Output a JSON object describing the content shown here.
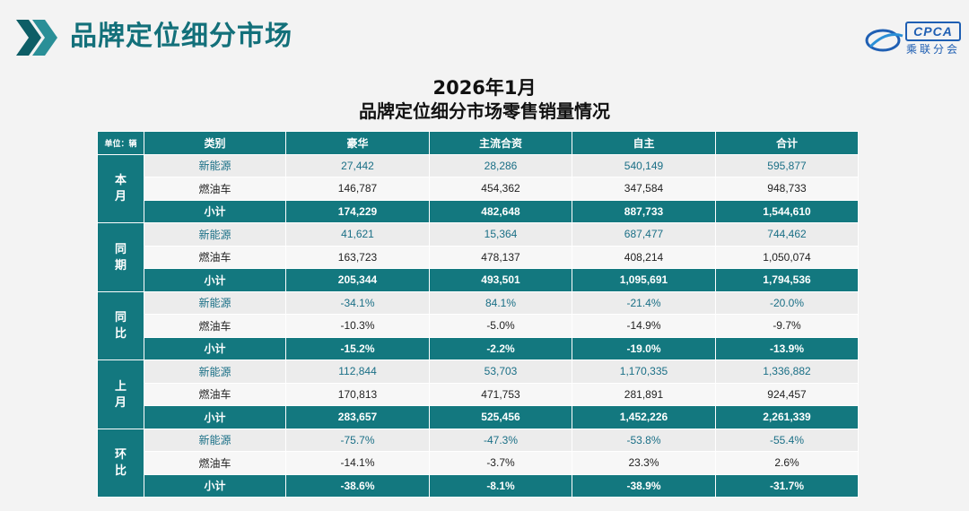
{
  "page_title": "品牌定位细分市场",
  "logo": {
    "text": "CPCA",
    "subtext": "乘联分会"
  },
  "heading": {
    "period": "2026年1月",
    "title": "品牌定位细分市场零售销量情况"
  },
  "table": {
    "unit_label": "单位：辆",
    "columns": [
      "类别",
      "豪华",
      "主流合资",
      "自主",
      "合计"
    ],
    "groups": [
      {
        "name": "本月",
        "rows": [
          {
            "category": "新能源",
            "values": [
              "27,442",
              "28,286",
              "540,149",
              "595,877"
            ]
          },
          {
            "category": "燃油车",
            "values": [
              "146,787",
              "454,362",
              "347,584",
              "948,733"
            ]
          },
          {
            "category": "小计",
            "values": [
              "174,229",
              "482,648",
              "887,733",
              "1,544,610"
            ]
          }
        ]
      },
      {
        "name": "同期",
        "rows": [
          {
            "category": "新能源",
            "values": [
              "41,621",
              "15,364",
              "687,477",
              "744,462"
            ]
          },
          {
            "category": "燃油车",
            "values": [
              "163,723",
              "478,137",
              "408,214",
              "1,050,074"
            ]
          },
          {
            "category": "小计",
            "values": [
              "205,344",
              "493,501",
              "1,095,691",
              "1,794,536"
            ]
          }
        ]
      },
      {
        "name": "同比",
        "rows": [
          {
            "category": "新能源",
            "values": [
              "-34.1%",
              "84.1%",
              "-21.4%",
              "-20.0%"
            ]
          },
          {
            "category": "燃油车",
            "values": [
              "-10.3%",
              "-5.0%",
              "-14.9%",
              "-9.7%"
            ]
          },
          {
            "category": "小计",
            "values": [
              "-15.2%",
              "-2.2%",
              "-19.0%",
              "-13.9%"
            ]
          }
        ]
      },
      {
        "name": "上月",
        "rows": [
          {
            "category": "新能源",
            "values": [
              "112,844",
              "53,703",
              "1,170,335",
              "1,336,882"
            ]
          },
          {
            "category": "燃油车",
            "values": [
              "170,813",
              "471,753",
              "281,891",
              "924,457"
            ]
          },
          {
            "category": "小计",
            "values": [
              "283,657",
              "525,456",
              "1,452,226",
              "2,261,339"
            ]
          }
        ]
      },
      {
        "name": "环比",
        "rows": [
          {
            "category": "新能源",
            "values": [
              "-75.7%",
              "-47.3%",
              "-53.8%",
              "-55.4%"
            ]
          },
          {
            "category": "燃油车",
            "values": [
              "-14.1%",
              "-3.7%",
              "23.3%",
              "2.6%"
            ]
          },
          {
            "category": "小计",
            "values": [
              "-38.6%",
              "-8.1%",
              "-38.9%",
              "-31.7%"
            ]
          }
        ]
      }
    ]
  }
}
